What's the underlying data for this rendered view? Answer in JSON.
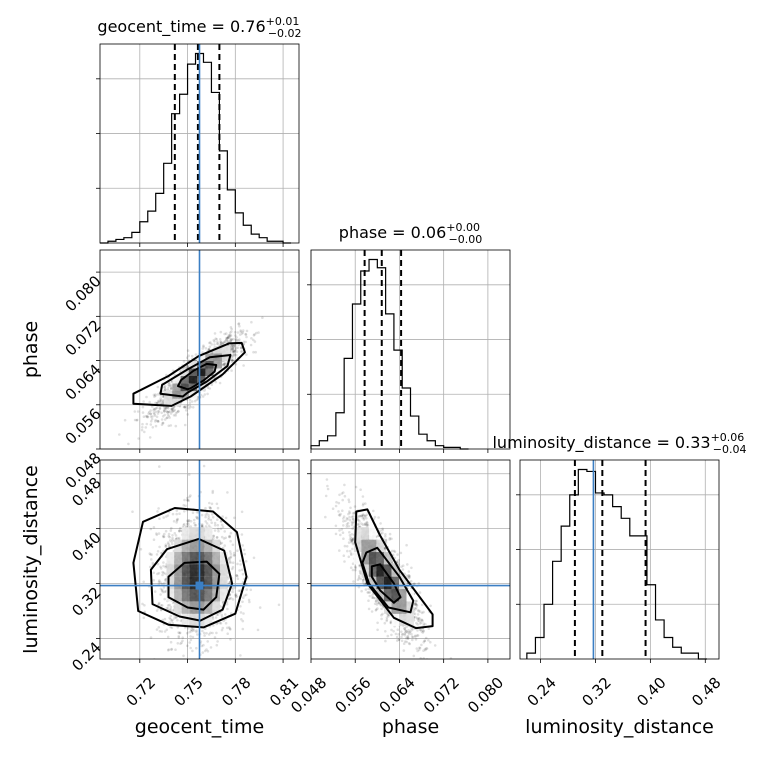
{
  "chart_data": {
    "type": "corner",
    "parameters": [
      {
        "key": "geocent_time",
        "label": "geocent_time",
        "title_base": "geocent_time = 0.76",
        "title_plus": "+0.01",
        "title_minus": "−0.02",
        "range": [
          0.695,
          0.82
        ],
        "ticks": [
          0.72,
          0.75,
          0.78,
          0.81
        ],
        "tick_labels": [
          "0.72",
          "0.75",
          "0.78",
          "0.81"
        ],
        "truth": 0.7575,
        "quantiles": [
          0.742,
          0.7565,
          0.77
        ],
        "hist_bins": [
          0.695,
          0.7,
          0.705,
          0.71,
          0.715,
          0.72,
          0.725,
          0.73,
          0.735,
          0.74,
          0.745,
          0.75,
          0.755,
          0.76,
          0.765,
          0.77,
          0.775,
          0.78,
          0.785,
          0.79,
          0.795,
          0.8,
          0.805,
          0.81,
          0.815
        ],
        "hist_counts": [
          0,
          1,
          2,
          3,
          6,
          12,
          18,
          28,
          45,
          73,
          84,
          101,
          107,
          102,
          85,
          52,
          30,
          17,
          10,
          5,
          3,
          1,
          1,
          0
        ],
        "hist_max": 107
      },
      {
        "key": "phase",
        "label": "phase",
        "title_base": "phase = 0.06",
        "title_plus": "+0.00",
        "title_minus": "−0.00",
        "range": [
          0.048,
          0.084
        ],
        "ticks": [
          0.048,
          0.056,
          0.064,
          0.072,
          0.08
        ],
        "tick_labels": [
          "0.048",
          "0.056",
          "0.064",
          "0.072",
          "0.080"
        ],
        "truth": null,
        "quantiles": [
          0.0577,
          0.0608,
          0.0643
        ],
        "hist_bins": [
          0.048,
          0.0495,
          0.051,
          0.0525,
          0.054,
          0.0555,
          0.057,
          0.0585,
          0.06,
          0.0615,
          0.063,
          0.0645,
          0.066,
          0.0675,
          0.069,
          0.0705,
          0.072,
          0.0735,
          0.075,
          0.0765
        ],
        "hist_counts": [
          2,
          5,
          8,
          22,
          55,
          88,
          108,
          115,
          110,
          82,
          60,
          37,
          20,
          9,
          5,
          2,
          1,
          1,
          0
        ],
        "hist_max": 115
      },
      {
        "key": "luminosity_distance",
        "label": "luminosity_distance",
        "title_base": "luminosity_distance = 0.33",
        "title_plus": "+0.06",
        "title_minus": "−0.04",
        "range": [
          0.21,
          0.5
        ],
        "ticks": [
          0.24,
          0.32,
          0.4,
          0.48
        ],
        "tick_labels": [
          "0.24",
          "0.32",
          "0.40",
          "0.48"
        ],
        "truth": 0.317,
        "quantiles": [
          0.29,
          0.33,
          0.393
        ],
        "hist_bins": [
          0.22,
          0.2325,
          0.245,
          0.2575,
          0.27,
          0.2825,
          0.295,
          0.3075,
          0.32,
          0.3325,
          0.345,
          0.3575,
          0.37,
          0.3825,
          0.395,
          0.4075,
          0.42,
          0.4325,
          0.445,
          0.4575,
          0.47,
          0.4825
        ],
        "hist_counts": [
          3,
          11,
          28,
          50,
          68,
          84,
          97,
          96,
          85,
          84,
          78,
          72,
          63,
          63,
          38,
          20,
          11,
          6,
          3,
          3,
          0
        ],
        "hist_max": 97
      }
    ],
    "pairs": [
      {
        "x": "geocent_time",
        "y": "phase",
        "correlation": 0.85,
        "center": [
          0.756,
          0.0612
        ],
        "spread": [
          0.013,
          0.0034
        ],
        "contours": [
          [
            [
              0.75,
              0.0588
            ],
            [
              0.744,
              0.0594
            ],
            [
              0.746,
              0.0605
            ],
            [
              0.754,
              0.0622
            ],
            [
              0.762,
              0.0634
            ],
            [
              0.768,
              0.0632
            ],
            [
              0.767,
              0.062
            ],
            [
              0.76,
              0.0604
            ],
            [
              0.752,
              0.059
            ]
          ],
          [
            [
              0.747,
              0.0575
            ],
            [
              0.733,
              0.058
            ],
            [
              0.734,
              0.0596
            ],
            [
              0.75,
              0.0624
            ],
            [
              0.764,
              0.0646
            ],
            [
              0.777,
              0.065
            ],
            [
              0.775,
              0.063
            ],
            [
              0.762,
              0.0602
            ],
            [
              0.75,
              0.0582
            ]
          ],
          [
            [
              0.74,
              0.0558
            ],
            [
              0.716,
              0.0562
            ],
            [
              0.716,
              0.058
            ],
            [
              0.738,
              0.0612
            ],
            [
              0.757,
              0.0648
            ],
            [
              0.776,
              0.0671
            ],
            [
              0.784,
              0.0672
            ],
            [
              0.786,
              0.0655
            ],
            [
              0.772,
              0.0615
            ],
            [
              0.752,
              0.0575
            ]
          ]
        ],
        "truth": [
          0.7575,
          null
        ]
      },
      {
        "x": "geocent_time",
        "y": "luminosity_distance",
        "correlation": 0.0,
        "center": [
          0.756,
          0.33
        ],
        "spread": [
          0.012,
          0.045
        ],
        "contours": [
          [
            [
              0.75,
              0.285
            ],
            [
              0.738,
              0.3
            ],
            [
              0.738,
              0.33
            ],
            [
              0.748,
              0.35
            ],
            [
              0.762,
              0.352
            ],
            [
              0.77,
              0.334
            ],
            [
              0.768,
              0.3
            ],
            [
              0.76,
              0.282
            ]
          ],
          [
            [
              0.745,
              0.272
            ],
            [
              0.728,
              0.29
            ],
            [
              0.727,
              0.34
            ],
            [
              0.737,
              0.37
            ],
            [
              0.757,
              0.385
            ],
            [
              0.773,
              0.368
            ],
            [
              0.778,
              0.32
            ],
            [
              0.772,
              0.282
            ],
            [
              0.758,
              0.266
            ]
          ],
          [
            [
              0.738,
              0.26
            ],
            [
              0.719,
              0.28
            ],
            [
              0.716,
              0.35
            ],
            [
              0.722,
              0.41
            ],
            [
              0.742,
              0.43
            ],
            [
              0.766,
              0.425
            ],
            [
              0.781,
              0.395
            ],
            [
              0.787,
              0.33
            ],
            [
              0.78,
              0.276
            ],
            [
              0.76,
              0.256
            ]
          ]
        ],
        "truth": [
          0.7575,
          0.317
        ]
      },
      {
        "x": "phase",
        "y": "luminosity_distance",
        "correlation": -0.8,
        "center": [
          0.0612,
          0.33
        ],
        "spread": [
          0.0034,
          0.045
        ],
        "contours": [
          [
            [
              0.059,
              0.345
            ],
            [
              0.0605,
              0.348
            ],
            [
              0.063,
              0.32
            ],
            [
              0.0642,
              0.3
            ],
            [
              0.063,
              0.292
            ],
            [
              0.0605,
              0.31
            ],
            [
              0.059,
              0.33
            ]
          ],
          [
            [
              0.058,
              0.365
            ],
            [
              0.06,
              0.372
            ],
            [
              0.064,
              0.33
            ],
            [
              0.0665,
              0.295
            ],
            [
              0.066,
              0.278
            ],
            [
              0.062,
              0.285
            ],
            [
              0.0585,
              0.32
            ],
            [
              0.0573,
              0.35
            ]
          ],
          [
            [
              0.0562,
              0.425
            ],
            [
              0.0582,
              0.428
            ],
            [
              0.0605,
              0.39
            ],
            [
              0.064,
              0.34
            ],
            [
              0.07,
              0.275
            ],
            [
              0.07,
              0.258
            ],
            [
              0.067,
              0.255
            ],
            [
              0.063,
              0.27
            ],
            [
              0.0582,
              0.32
            ],
            [
              0.056,
              0.38
            ]
          ]
        ],
        "truth": [
          null,
          0.317
        ]
      }
    ]
  }
}
